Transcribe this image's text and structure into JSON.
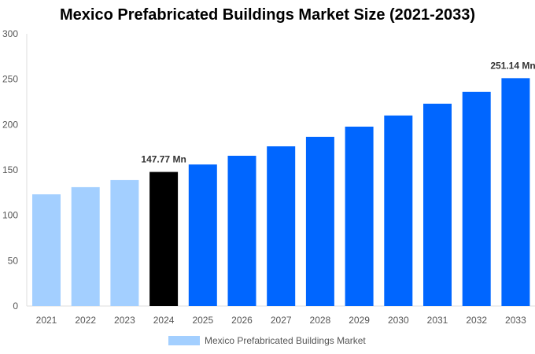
{
  "chart_data": {
    "type": "bar",
    "title": "Mexico Prefabricated Buildings Market Size (2021-2033)",
    "categories": [
      "2021",
      "2022",
      "2023",
      "2024",
      "2025",
      "2026",
      "2027",
      "2028",
      "2029",
      "2030",
      "2031",
      "2032",
      "2033"
    ],
    "series": [
      {
        "name": "Mexico Prefabricated Buildings Market",
        "values": [
          123.1,
          131.0,
          138.8,
          147.77,
          156.0,
          165.6,
          176.0,
          186.5,
          197.7,
          210.0,
          223.0,
          236.0,
          251.14
        ]
      }
    ],
    "data_labels": {
      "3": "147.77 Mn",
      "12": "251.14 Mn"
    },
    "ylim": [
      0,
      300
    ],
    "yticks": [
      0,
      50,
      100,
      150,
      200,
      250,
      300
    ],
    "colors": {
      "historical": "#a3cfff",
      "base_year": "#000000",
      "forecast": "#0066ff"
    },
    "grid": false,
    "legend": "bottom"
  }
}
